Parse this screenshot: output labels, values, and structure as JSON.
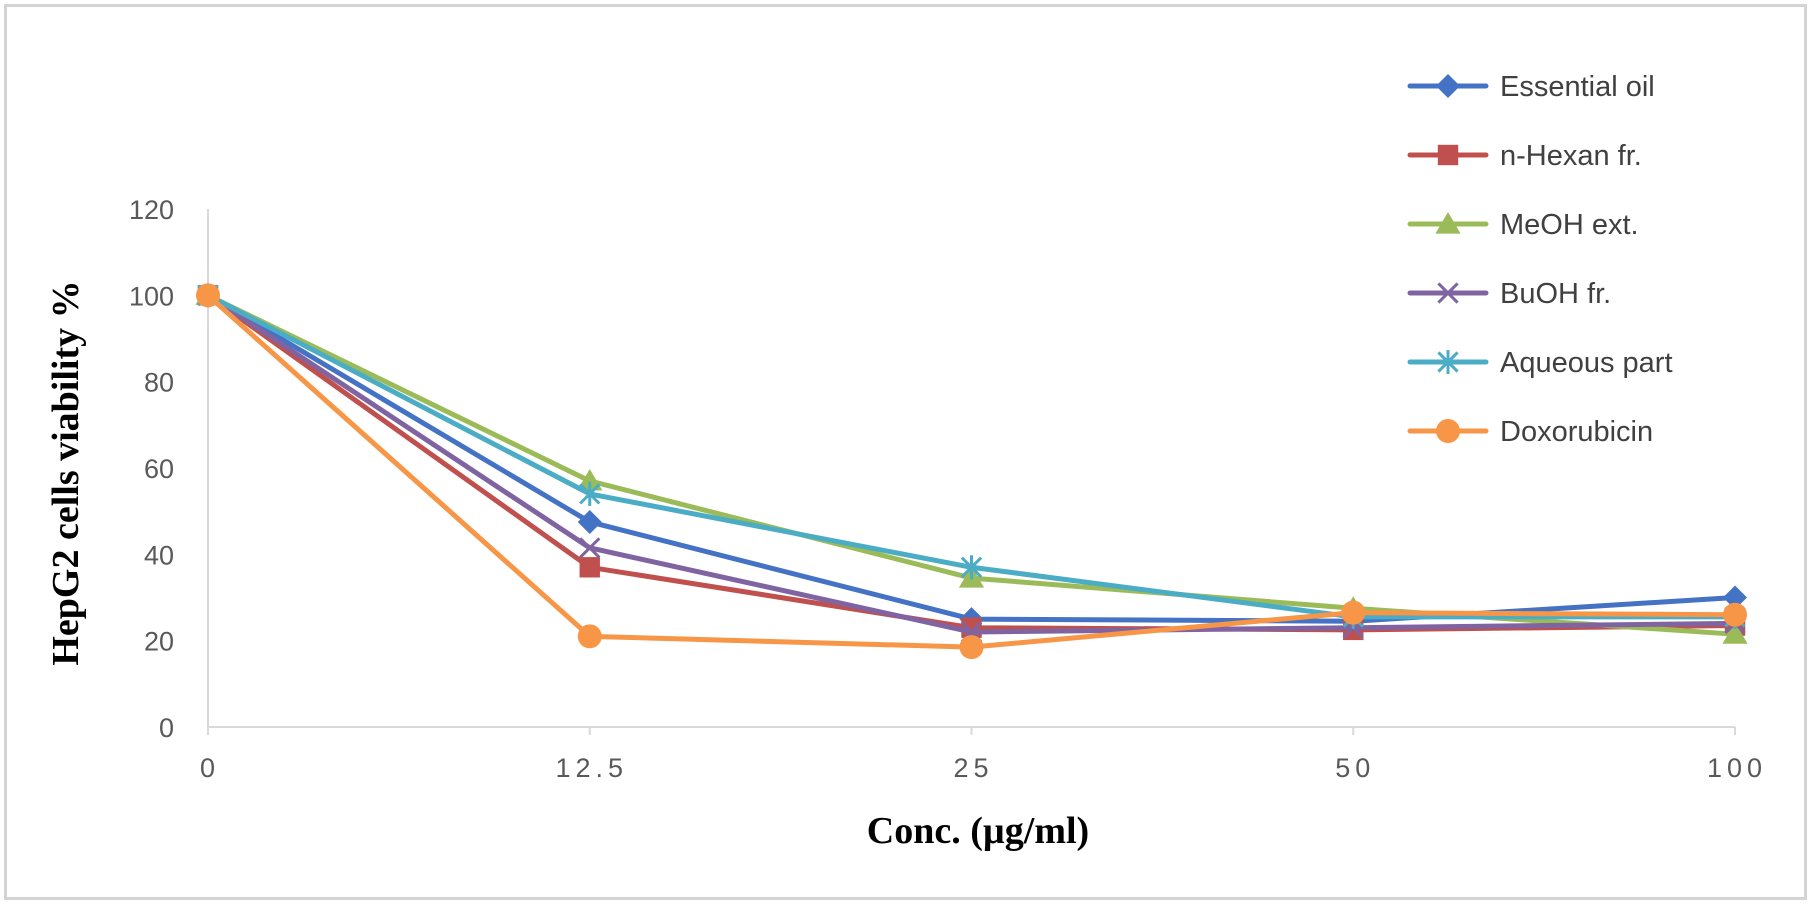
{
  "chart_data": {
    "type": "line",
    "title": "",
    "xlabel": "Conc. (µg/ml)",
    "ylabel": "HepG2 cells viability %",
    "categories": [
      "0",
      "12.5",
      "25",
      "50",
      "100"
    ],
    "ylim": [
      0,
      120
    ],
    "yticks": [
      "0",
      "20",
      "40",
      "60",
      "80",
      "100",
      "120"
    ],
    "grid": false,
    "legend_position": "top-right",
    "series": [
      {
        "name": "Essential oil",
        "color": "#4472C4",
        "marker": "diamond",
        "values": [
          100,
          47.5,
          25,
          24.5,
          30
        ]
      },
      {
        "name": "n-Hexan fr.",
        "color": "#C0504D",
        "marker": "square",
        "values": [
          100,
          37,
          23,
          22.5,
          23.5
        ]
      },
      {
        "name": "MeOH ext.",
        "color": "#9BBB59",
        "marker": "triangle",
        "values": [
          100,
          57,
          34.5,
          27.5,
          21.5
        ]
      },
      {
        "name": "BuOH fr.",
        "color": "#8064A2",
        "marker": "x",
        "values": [
          100,
          41.5,
          22,
          23,
          24
        ]
      },
      {
        "name": "Aqueous part",
        "color": "#4BACC6",
        "marker": "star",
        "values": [
          100,
          54,
          37,
          25.5,
          25.5
        ]
      },
      {
        "name": "Doxorubicin",
        "color": "#F79646",
        "marker": "circle",
        "values": [
          100,
          21,
          18.5,
          26.5,
          26
        ]
      }
    ]
  }
}
